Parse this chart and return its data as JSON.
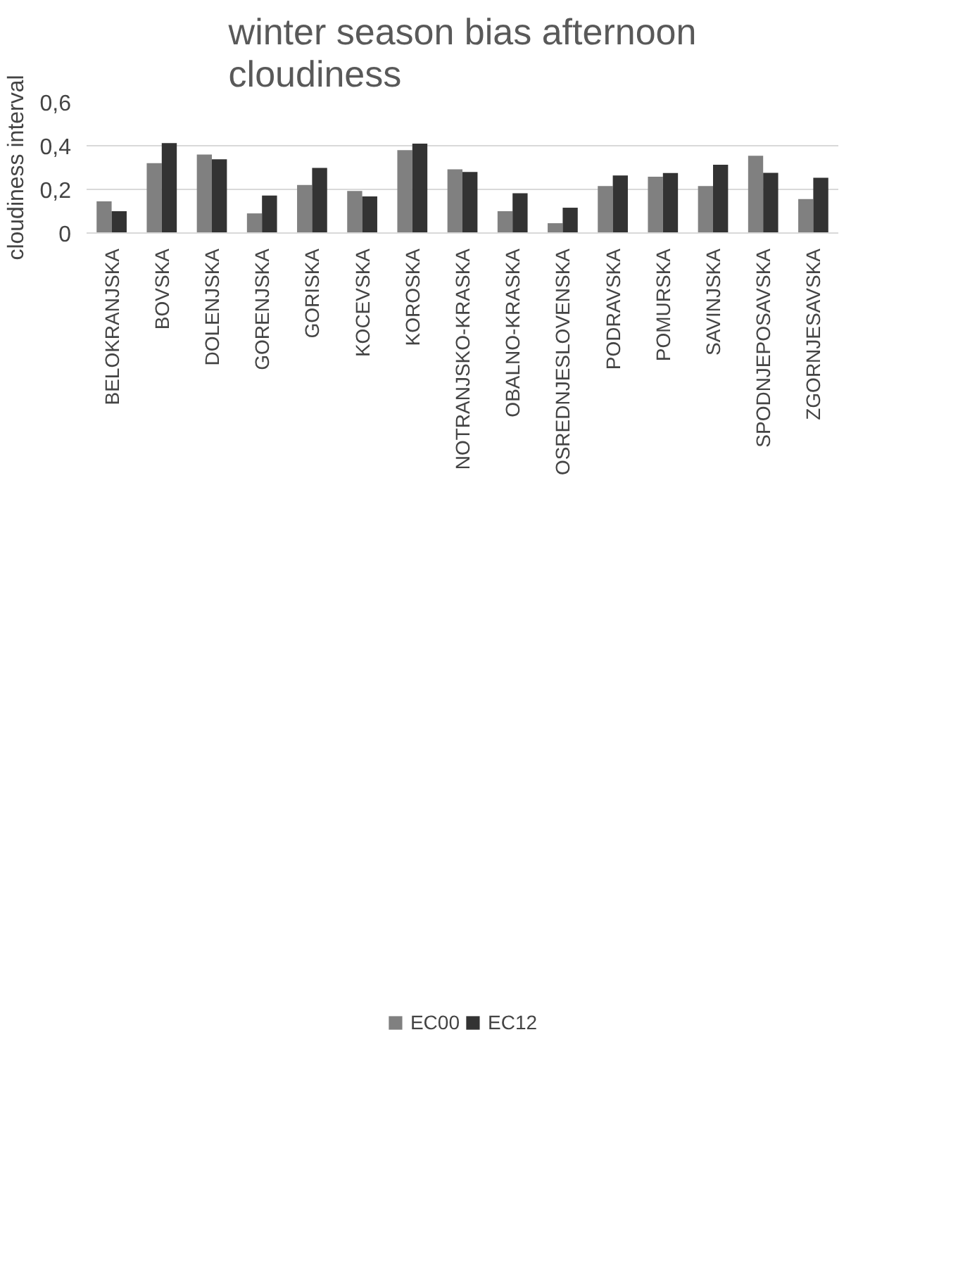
{
  "chart_data": {
    "type": "bar",
    "title": "winter season bias afternoon cloudiness",
    "ylabel": "cloudiness interval",
    "categories": [
      "BELOKRANJSKA",
      "BOVSKA",
      "DOLENJSKA",
      "GORENJSKA",
      "GORISKA",
      "KOCEVSKA",
      "KOROSKA",
      "NOTRANJSKO-KRASKA",
      "OBALNO-KRASKA",
      "OSREDNJESLOVENSKA",
      "PODRAVSKA",
      "POMURSKA",
      "SAVINJSKA",
      "SPODNJEPOSAVSKA",
      "ZGORNJESAVSKA"
    ],
    "series": [
      {
        "name": "EC00",
        "color": "#808080",
        "values": [
          0.145,
          0.32,
          0.36,
          0.09,
          0.22,
          0.193,
          0.38,
          0.292,
          0.1,
          0.045,
          0.215,
          0.258,
          0.215,
          0.354,
          0.156
        ]
      },
      {
        "name": "EC12",
        "color": "#333333",
        "values": [
          0.1,
          0.412,
          0.338,
          0.172,
          0.298,
          0.168,
          0.41,
          0.28,
          0.182,
          0.116,
          0.264,
          0.275,
          0.313,
          0.276,
          0.253
        ]
      }
    ],
    "ylim": [
      0,
      0.6
    ],
    "yticks": [
      {
        "value": 0,
        "label": "0"
      },
      {
        "value": 0.2,
        "label": "0,2"
      },
      {
        "value": 0.4,
        "label": "0,4"
      },
      {
        "value": 0.6,
        "label": "0,6"
      }
    ],
    "grid": "y",
    "legend": "bottom"
  }
}
